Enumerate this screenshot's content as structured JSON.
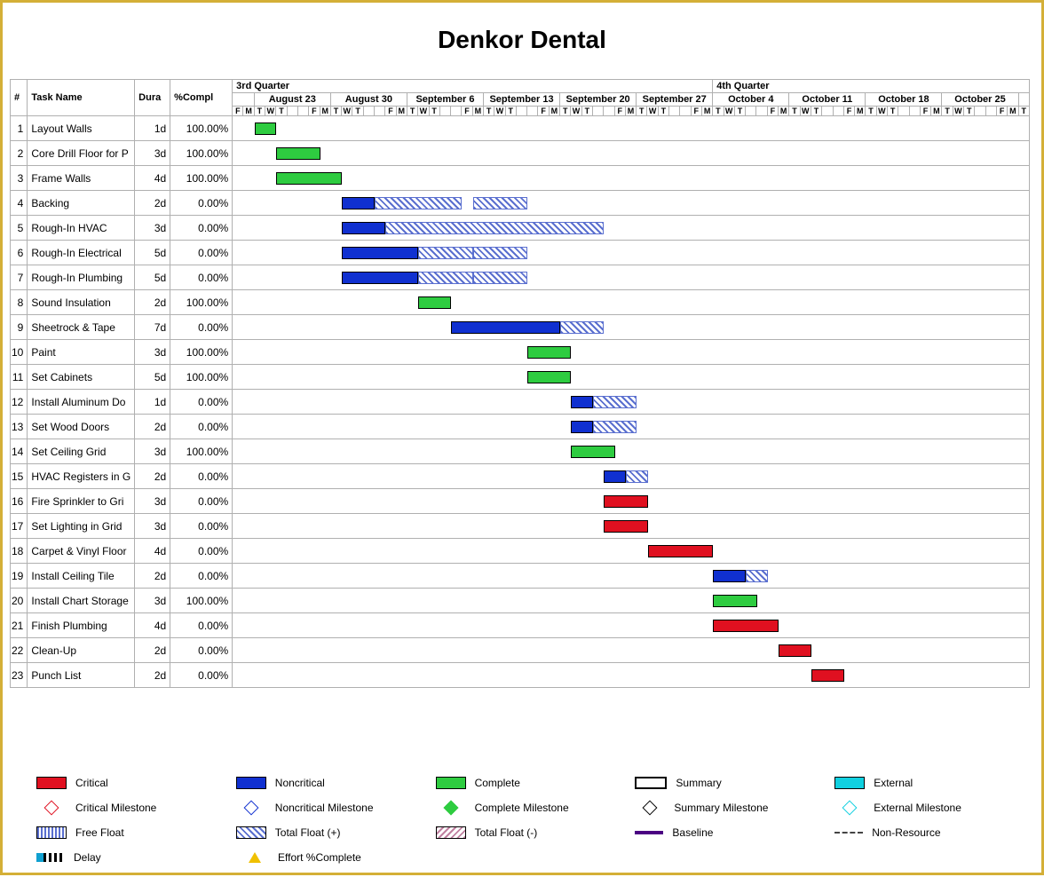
{
  "title": "Denkor Dental",
  "columns": {
    "id": "#",
    "name": "Task Name",
    "dura": "Dura",
    "compl": "%Compl"
  },
  "quarters": [
    "3rd Quarter",
    "4th Quarter"
  ],
  "weeks": [
    "August 23",
    "August 30",
    "September 6",
    "September 13",
    "September 20",
    "September 27",
    "October 4",
    "October 11",
    "October 18",
    "October 25"
  ],
  "preDays": 2,
  "dayLabels": [
    "F",
    "M",
    "T",
    "W",
    "T",
    "F",
    "M",
    "T",
    "W",
    "T",
    "F",
    "M",
    "T",
    "W",
    "T",
    "F",
    "M",
    "T",
    "W",
    "T",
    "F",
    "M",
    "T",
    "W",
    "T",
    "F",
    "M",
    "T",
    "W",
    "T",
    "F",
    "M",
    "T",
    "W",
    "T",
    "F",
    "M",
    "T",
    "W",
    "T",
    "F",
    "M",
    "T",
    "W",
    "T",
    "F",
    "M",
    "T",
    "W",
    "T",
    "F",
    "M",
    "T"
  ],
  "postDays": 1,
  "totalDays": 73,
  "tasks": [
    {
      "id": 1,
      "name": "Layout Walls",
      "dura": "1d",
      "compl": "100.00%",
      "bars": [
        {
          "type": "complete",
          "start": 2,
          "len": 2
        }
      ]
    },
    {
      "id": 2,
      "name": "Core Drill Floor for P",
      "dura": "3d",
      "compl": "100.00%",
      "bars": [
        {
          "type": "complete",
          "start": 4,
          "len": 4
        }
      ]
    },
    {
      "id": 3,
      "name": "Frame Walls",
      "dura": "4d",
      "compl": "100.00%",
      "bars": [
        {
          "type": "complete",
          "start": 4,
          "len": 6
        }
      ]
    },
    {
      "id": 4,
      "name": "Backing",
      "dura": "2d",
      "compl": "0.00%",
      "bars": [
        {
          "type": "noncrit",
          "start": 10,
          "len": 3
        },
        {
          "type": "tfloat",
          "start": 13,
          "len": 8
        },
        {
          "type": "tfloat",
          "start": 22,
          "len": 5
        }
      ]
    },
    {
      "id": 5,
      "name": "Rough-In HVAC",
      "dura": "3d",
      "compl": "0.00%",
      "bars": [
        {
          "type": "noncrit",
          "start": 10,
          "len": 4
        },
        {
          "type": "tfloat",
          "start": 14,
          "len": 20
        }
      ]
    },
    {
      "id": 6,
      "name": "Rough-In Electrical",
      "dura": "5d",
      "compl": "0.00%",
      "bars": [
        {
          "type": "noncrit",
          "start": 10,
          "len": 7
        },
        {
          "type": "tfloat",
          "start": 17,
          "len": 5
        },
        {
          "type": "tfloat",
          "start": 22,
          "len": 5
        }
      ]
    },
    {
      "id": 7,
      "name": "Rough-In Plumbing",
      "dura": "5d",
      "compl": "0.00%",
      "bars": [
        {
          "type": "noncrit",
          "start": 10,
          "len": 7
        },
        {
          "type": "tfloat",
          "start": 17,
          "len": 5
        },
        {
          "type": "tfloat",
          "start": 22,
          "len": 5
        }
      ]
    },
    {
      "id": 8,
      "name": "Sound Insulation",
      "dura": "2d",
      "compl": "100.00%",
      "bars": [
        {
          "type": "complete",
          "start": 17,
          "len": 3
        }
      ]
    },
    {
      "id": 9,
      "name": "Sheetrock & Tape",
      "dura": "7d",
      "compl": "0.00%",
      "bars": [
        {
          "type": "noncrit",
          "start": 20,
          "len": 10
        },
        {
          "type": "tfloat",
          "start": 30,
          "len": 4
        }
      ]
    },
    {
      "id": 10,
      "name": "Paint",
      "dura": "3d",
      "compl": "100.00%",
      "bars": [
        {
          "type": "complete",
          "start": 27,
          "len": 4
        }
      ]
    },
    {
      "id": 11,
      "name": "Set Cabinets",
      "dura": "5d",
      "compl": "100.00%",
      "bars": [
        {
          "type": "complete",
          "start": 27,
          "len": 4
        }
      ]
    },
    {
      "id": 12,
      "name": "Install Aluminum Do",
      "dura": "1d",
      "compl": "0.00%",
      "bars": [
        {
          "type": "noncrit",
          "start": 31,
          "len": 2
        },
        {
          "type": "tfloat",
          "start": 33,
          "len": 4
        }
      ]
    },
    {
      "id": 13,
      "name": "Set Wood Doors",
      "dura": "2d",
      "compl": "0.00%",
      "bars": [
        {
          "type": "noncrit",
          "start": 31,
          "len": 2
        },
        {
          "type": "tfloat",
          "start": 33,
          "len": 4
        }
      ]
    },
    {
      "id": 14,
      "name": "Set Ceiling Grid",
      "dura": "3d",
      "compl": "100.00%",
      "bars": [
        {
          "type": "complete",
          "start": 31,
          "len": 4
        }
      ]
    },
    {
      "id": 15,
      "name": "HVAC Registers in G",
      "dura": "2d",
      "compl": "0.00%",
      "bars": [
        {
          "type": "noncrit",
          "start": 34,
          "len": 2
        },
        {
          "type": "tfloat",
          "start": 36,
          "len": 2
        }
      ]
    },
    {
      "id": 16,
      "name": "Fire Sprinkler to Gri",
      "dura": "3d",
      "compl": "0.00%",
      "bars": [
        {
          "type": "critical",
          "start": 34,
          "len": 4
        }
      ]
    },
    {
      "id": 17,
      "name": "Set Lighting in Grid",
      "dura": "3d",
      "compl": "0.00%",
      "bars": [
        {
          "type": "critical",
          "start": 34,
          "len": 4
        }
      ]
    },
    {
      "id": 18,
      "name": "Carpet & Vinyl Floor",
      "dura": "4d",
      "compl": "0.00%",
      "bars": [
        {
          "type": "critical",
          "start": 38,
          "len": 6
        }
      ]
    },
    {
      "id": 19,
      "name": "Install Ceiling Tile",
      "dura": "2d",
      "compl": "0.00%",
      "bars": [
        {
          "type": "noncrit",
          "start": 44,
          "len": 3
        },
        {
          "type": "tfloat",
          "start": 47,
          "len": 2
        }
      ]
    },
    {
      "id": 20,
      "name": "Install Chart Storage",
      "dura": "3d",
      "compl": "100.00%",
      "bars": [
        {
          "type": "complete",
          "start": 44,
          "len": 4
        }
      ]
    },
    {
      "id": 21,
      "name": "Finish Plumbing",
      "dura": "4d",
      "compl": "0.00%",
      "bars": [
        {
          "type": "critical",
          "start": 44,
          "len": 6
        }
      ]
    },
    {
      "id": 22,
      "name": "Clean-Up",
      "dura": "2d",
      "compl": "0.00%",
      "bars": [
        {
          "type": "critical",
          "start": 50,
          "len": 3
        }
      ]
    },
    {
      "id": 23,
      "name": "Punch List",
      "dura": "2d",
      "compl": "0.00%",
      "bars": [
        {
          "type": "critical",
          "start": 53,
          "len": 3
        }
      ]
    }
  ],
  "legend": {
    "row1": [
      {
        "sw": "sw-crit",
        "label": "Critical"
      },
      {
        "sw": "sw-noncrit",
        "label": "Noncritical"
      },
      {
        "sw": "sw-comp",
        "label": "Complete"
      },
      {
        "sw": "sw-sum",
        "label": "Summary"
      },
      {
        "sw": "sw-ext",
        "label": "External"
      }
    ],
    "row2": [
      {
        "shape": "diamond",
        "color": "#e01020",
        "label": "Critical Milestone"
      },
      {
        "shape": "diamond",
        "color": "#1030d0",
        "label": "Noncritical Milestone"
      },
      {
        "shape": "diamond",
        "color": "#2ecc40",
        "fill": "#2ecc40",
        "label": "Complete Milestone"
      },
      {
        "shape": "diamond",
        "color": "#000",
        "label": "Summary Milestone"
      },
      {
        "shape": "diamond",
        "color": "#10d0e0",
        "label": "External Milestone"
      }
    ],
    "row3": [
      {
        "sw": "sw-ff",
        "label": "Free Float"
      },
      {
        "sw": "sw-tp",
        "label": "Total Float (+)"
      },
      {
        "sw": "sw-tn",
        "label": "Total Float (-)"
      },
      {
        "sw": "sw-base",
        "label": "Baseline"
      },
      {
        "sw": "sw-dash",
        "label": "Non-Resource"
      }
    ],
    "row4": [
      {
        "sw": "delay-sw",
        "label": "Delay"
      },
      {
        "shape": "tri",
        "color": "#f0c000",
        "label": "Effort %Complete"
      }
    ]
  },
  "colors": {
    "complete": "#2ecc40",
    "noncrit": "#1030d0",
    "critical": "#e01020",
    "float": "#5a6fcf",
    "border": "#d4af37"
  },
  "cellWidth": 12.3
}
